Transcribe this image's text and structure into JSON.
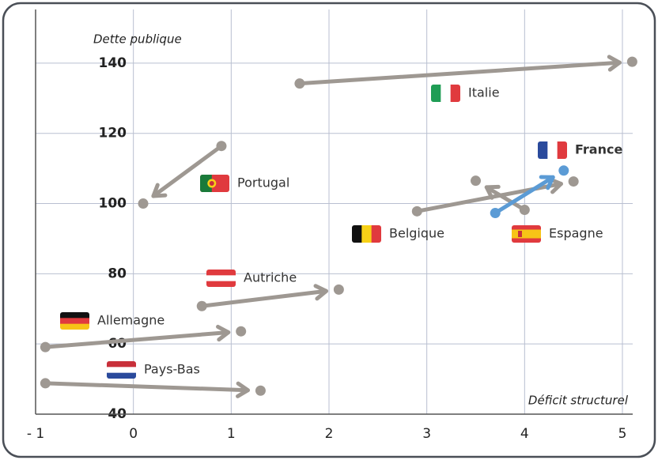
{
  "chart_data": {
    "type": "arrow",
    "x_label": "Déficit structurel",
    "y_label": "Dette publique",
    "xlim": [
      -1,
      5
    ],
    "ylim": [
      40,
      150
    ],
    "xticks": [
      {
        "value": -1,
        "label": "- 1"
      },
      0,
      1,
      2,
      3,
      4,
      5
    ],
    "yticks": [
      40,
      60,
      80,
      100,
      120,
      140
    ],
    "grid": true,
    "series": [
      {
        "name": "Italie",
        "color": "#9e9892",
        "x": [
          1.7,
          5.1
        ],
        "values": [
          134.2,
          140.4
        ]
      },
      {
        "name": "Portugal",
        "color": "#9e9892",
        "x": [
          0.9,
          0.1
        ],
        "values": [
          116.4,
          100
        ]
      },
      {
        "name": "Belgique",
        "color": "#9e9892",
        "x": [
          2.9,
          4.5
        ],
        "values": [
          97.8,
          106.3
        ]
      },
      {
        "name": "Espagne",
        "color": "#9e9892",
        "x": [
          4.0,
          3.5
        ],
        "values": [
          98.2,
          106.5
        ]
      },
      {
        "name": "France",
        "color": "#5b9bd5",
        "x": [
          3.7,
          4.4
        ],
        "values": [
          97.3,
          109.4
        ]
      },
      {
        "name": "Autriche",
        "color": "#9e9892",
        "x": [
          0.7,
          2.1
        ],
        "values": [
          70.8,
          75.5
        ]
      },
      {
        "name": "Allemagne",
        "color": "#9e9892",
        "x": [
          -0.9,
          1.1
        ],
        "values": [
          59.1,
          63.6
        ]
      },
      {
        "name": "Pays-Bas",
        "color": "#9e9892",
        "x": [
          -0.9,
          1.3
        ],
        "values": [
          48.8,
          46.7
        ]
      }
    ]
  }
}
